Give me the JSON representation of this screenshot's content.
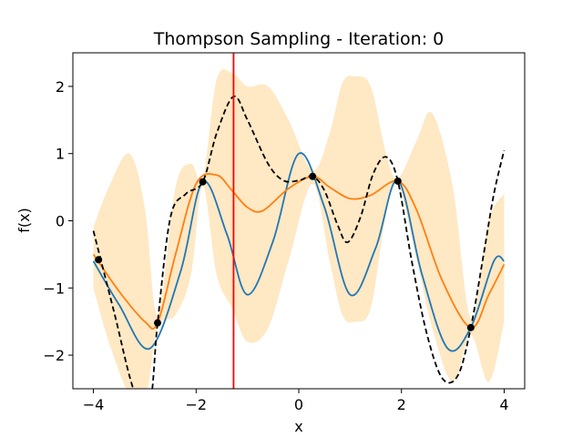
{
  "chart_data": {
    "type": "line",
    "title": "Thompson Sampling - Iteration: 0",
    "xlabel": "x",
    "ylabel": "f(x)",
    "xlim": [
      -4.4,
      4.4
    ],
    "ylim": [
      -2.5,
      2.5
    ],
    "xticks": [
      -4,
      -2,
      0,
      2,
      4
    ],
    "xtick_labels": [
      "−4",
      "−2",
      "0",
      "2",
      "4"
    ],
    "yticks": [
      -2,
      -1,
      0,
      1,
      2
    ],
    "ytick_labels": [
      "−2",
      "−1",
      "0",
      "1",
      "2"
    ],
    "grid": false,
    "legend": "none",
    "colors": {
      "true_function": "#1f77b4",
      "posterior_mean": "#ff7f0e",
      "confidence_band": "#ffe8c4",
      "posterior_sample": "#000000",
      "observations": "#000000",
      "next_query": "#ff0000"
    },
    "observations": {
      "x": [
        -3.9,
        -2.75,
        -1.87,
        0.27,
        1.93,
        3.35
      ],
      "y": [
        -0.58,
        -1.52,
        0.58,
        0.66,
        0.59,
        -1.59
      ]
    },
    "next_query_x": -1.27,
    "true_function": {
      "x": [
        -4.0,
        -3.5,
        -2.9,
        -2.3,
        -1.87,
        -1.4,
        -1.0,
        -0.5,
        0.0,
        0.5,
        1.0,
        1.5,
        1.93,
        2.4,
        2.9,
        3.35,
        3.8,
        4.0
      ],
      "y": [
        -0.6,
        -1.25,
        -1.9,
        -0.75,
        0.58,
        -0.2,
        -1.1,
        -0.3,
        1.0,
        0.2,
        -1.1,
        -0.4,
        0.6,
        -0.8,
        -1.9,
        -1.59,
        -0.6,
        -0.6
      ]
    },
    "posterior_mean": {
      "x": [
        -4.0,
        -3.5,
        -3.0,
        -2.75,
        -2.4,
        -2.0,
        -1.6,
        -1.3,
        -1.0,
        -0.7,
        -0.2,
        0.27,
        0.6,
        1.0,
        1.4,
        1.93,
        2.3,
        2.8,
        3.35,
        3.7,
        4.0
      ],
      "y": [
        -0.5,
        -1.05,
        -1.5,
        -1.52,
        -0.5,
        0.55,
        0.68,
        0.45,
        0.2,
        0.15,
        0.48,
        0.66,
        0.5,
        0.33,
        0.38,
        0.59,
        0.15,
        -0.9,
        -1.59,
        -1.1,
        -0.65
      ]
    },
    "posterior_sample": {
      "x": [
        -4.0,
        -3.6,
        -3.2,
        -2.9,
        -2.75,
        -2.5,
        -2.2,
        -1.87,
        -1.6,
        -1.27,
        -1.0,
        -0.6,
        -0.3,
        0.0,
        0.27,
        0.5,
        0.75,
        0.95,
        1.2,
        1.45,
        1.7,
        1.93,
        2.2,
        2.5,
        2.8,
        3.1,
        3.35,
        3.6,
        3.8,
        4.0
      ],
      "y": [
        -0.15,
        -1.35,
        -2.55,
        -2.7,
        -1.52,
        0.05,
        0.4,
        0.58,
        1.3,
        1.85,
        1.5,
        0.85,
        0.6,
        0.6,
        0.66,
        0.45,
        -0.05,
        -0.32,
        0.05,
        0.7,
        0.95,
        0.59,
        -0.6,
        -1.7,
        -2.35,
        -2.3,
        -1.59,
        -0.5,
        0.4,
        1.05
      ]
    },
    "confidence_band": {
      "x": [
        -4.0,
        -3.7,
        -3.3,
        -3.0,
        -2.75,
        -2.4,
        -2.1,
        -1.87,
        -1.6,
        -1.3,
        -1.0,
        -0.6,
        -0.2,
        0.27,
        0.6,
        0.85,
        1.1,
        1.4,
        1.7,
        1.93,
        2.3,
        2.6,
        3.0,
        3.35,
        3.7,
        4.0
      ],
      "upper": [
        -0.1,
        0.5,
        1.0,
        0.2,
        -1.4,
        0.5,
        0.85,
        0.62,
        2.1,
        2.2,
        2.0,
        2.0,
        1.5,
        0.75,
        1.3,
        2.05,
        2.15,
        2.0,
        1.0,
        0.63,
        1.2,
        1.6,
        0.5,
        -1.45,
        0.0,
        0.4
      ],
      "lower": [
        -1.0,
        -1.8,
        -2.6,
        -2.7,
        -1.6,
        -1.4,
        -0.8,
        0.52,
        -0.8,
        -1.3,
        -1.8,
        -1.6,
        -0.6,
        0.55,
        -0.6,
        -1.4,
        -1.5,
        -1.3,
        0.1,
        0.55,
        -0.6,
        -1.6,
        -2.4,
        -1.7,
        -2.4,
        -1.5
      ]
    }
  }
}
